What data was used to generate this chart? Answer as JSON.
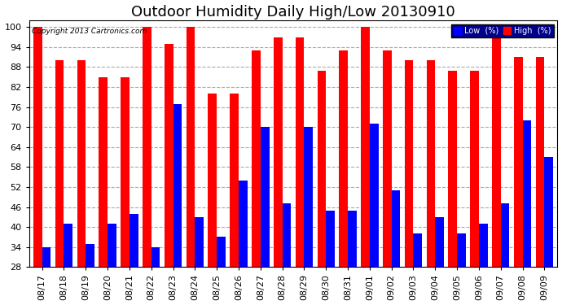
{
  "title": "Outdoor Humidity Daily High/Low 20130910",
  "copyright": "Copyright 2013 Cartronics.com",
  "dates": [
    "08/17",
    "08/18",
    "08/19",
    "08/20",
    "08/21",
    "08/22",
    "08/23",
    "08/24",
    "08/25",
    "08/26",
    "08/27",
    "08/28",
    "08/29",
    "08/30",
    "08/31",
    "09/01",
    "09/02",
    "09/03",
    "09/04",
    "09/05",
    "09/06",
    "09/07",
    "09/08",
    "09/09"
  ],
  "high": [
    100,
    90,
    90,
    85,
    85,
    100,
    95,
    100,
    80,
    80,
    93,
    97,
    97,
    87,
    93,
    100,
    93,
    90,
    90,
    87,
    87,
    100,
    91,
    91
  ],
  "low": [
    34,
    41,
    35,
    41,
    44,
    34,
    77,
    43,
    37,
    54,
    70,
    47,
    70,
    45,
    45,
    71,
    51,
    38,
    43,
    38,
    41,
    47,
    72,
    61
  ],
  "ylim_min": 28,
  "ylim_max": 102,
  "yticks": [
    28,
    34,
    40,
    46,
    52,
    58,
    64,
    70,
    76,
    82,
    88,
    94,
    100
  ],
  "bar_width": 0.4,
  "high_color": "#ff0000",
  "low_color": "#0000ff",
  "bg_color": "#ffffff",
  "grid_color": "#aaaaaa",
  "title_fontsize": 13,
  "tick_fontsize": 8,
  "legend_high_label": "High  (%)",
  "legend_low_label": "Low  (%)"
}
